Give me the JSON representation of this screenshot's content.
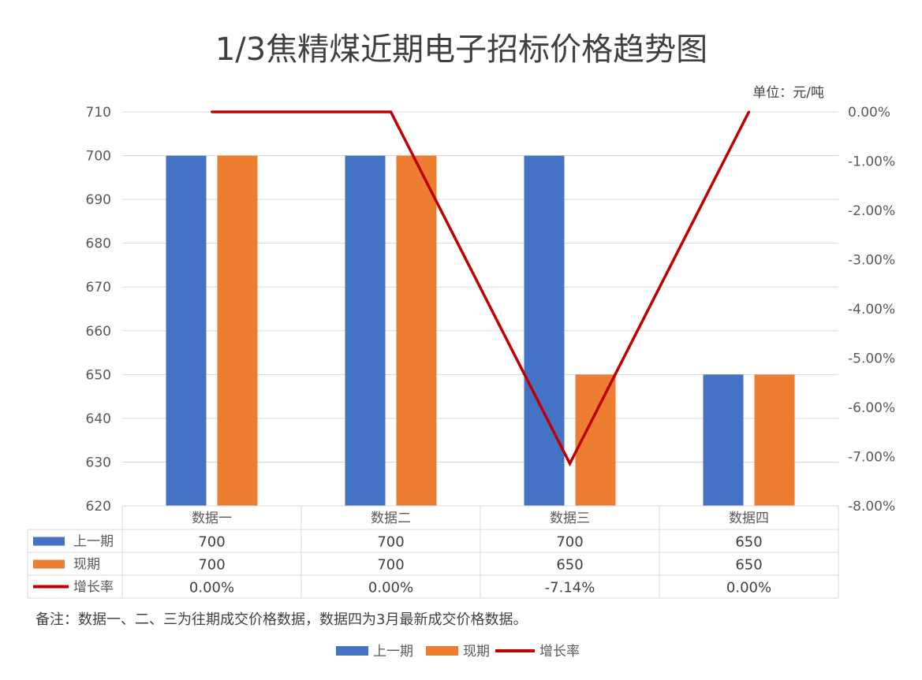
{
  "chart_data": {
    "type": "bar",
    "title": "1/3焦精煤近期电子招标价格趋势图",
    "unit_label": "单位：元/吨",
    "categories": [
      "数据一",
      "数据二",
      "数据三",
      "数据四"
    ],
    "series": [
      {
        "name": "上一期",
        "type": "bar",
        "axis": "left",
        "values": [
          700,
          700,
          700,
          650
        ],
        "labels": [
          "700",
          "700",
          "700",
          "650"
        ],
        "color": "#4472C4"
      },
      {
        "name": "现期",
        "type": "bar",
        "axis": "left",
        "values": [
          700,
          700,
          650,
          650
        ],
        "labels": [
          "700",
          "700",
          "650",
          "650"
        ],
        "color": "#ED7D31"
      },
      {
        "name": "增长率",
        "type": "line",
        "axis": "right",
        "values": [
          0.0,
          0.0,
          -7.14,
          0.0
        ],
        "labels": [
          "0.00%",
          "0.00%",
          "-7.14%",
          "0.00%"
        ],
        "color": "#C00000"
      }
    ],
    "y_left": {
      "min": 620,
      "max": 710,
      "step": 10,
      "ticks": [
        "620",
        "630",
        "640",
        "650",
        "660",
        "670",
        "680",
        "690",
        "700",
        "710"
      ]
    },
    "y_right": {
      "min": -8,
      "max": 0,
      "step": 1,
      "ticks": [
        "-8.00%",
        "-7.00%",
        "-6.00%",
        "-5.00%",
        "-4.00%",
        "-3.00%",
        "-2.00%",
        "-1.00%",
        "0.00%"
      ]
    },
    "grid": true,
    "data_table": true,
    "legend_position": "bottom"
  },
  "note": "备注：数据一、二、三为往期成交价格数据，数据四为3月最新成交价格数据。"
}
